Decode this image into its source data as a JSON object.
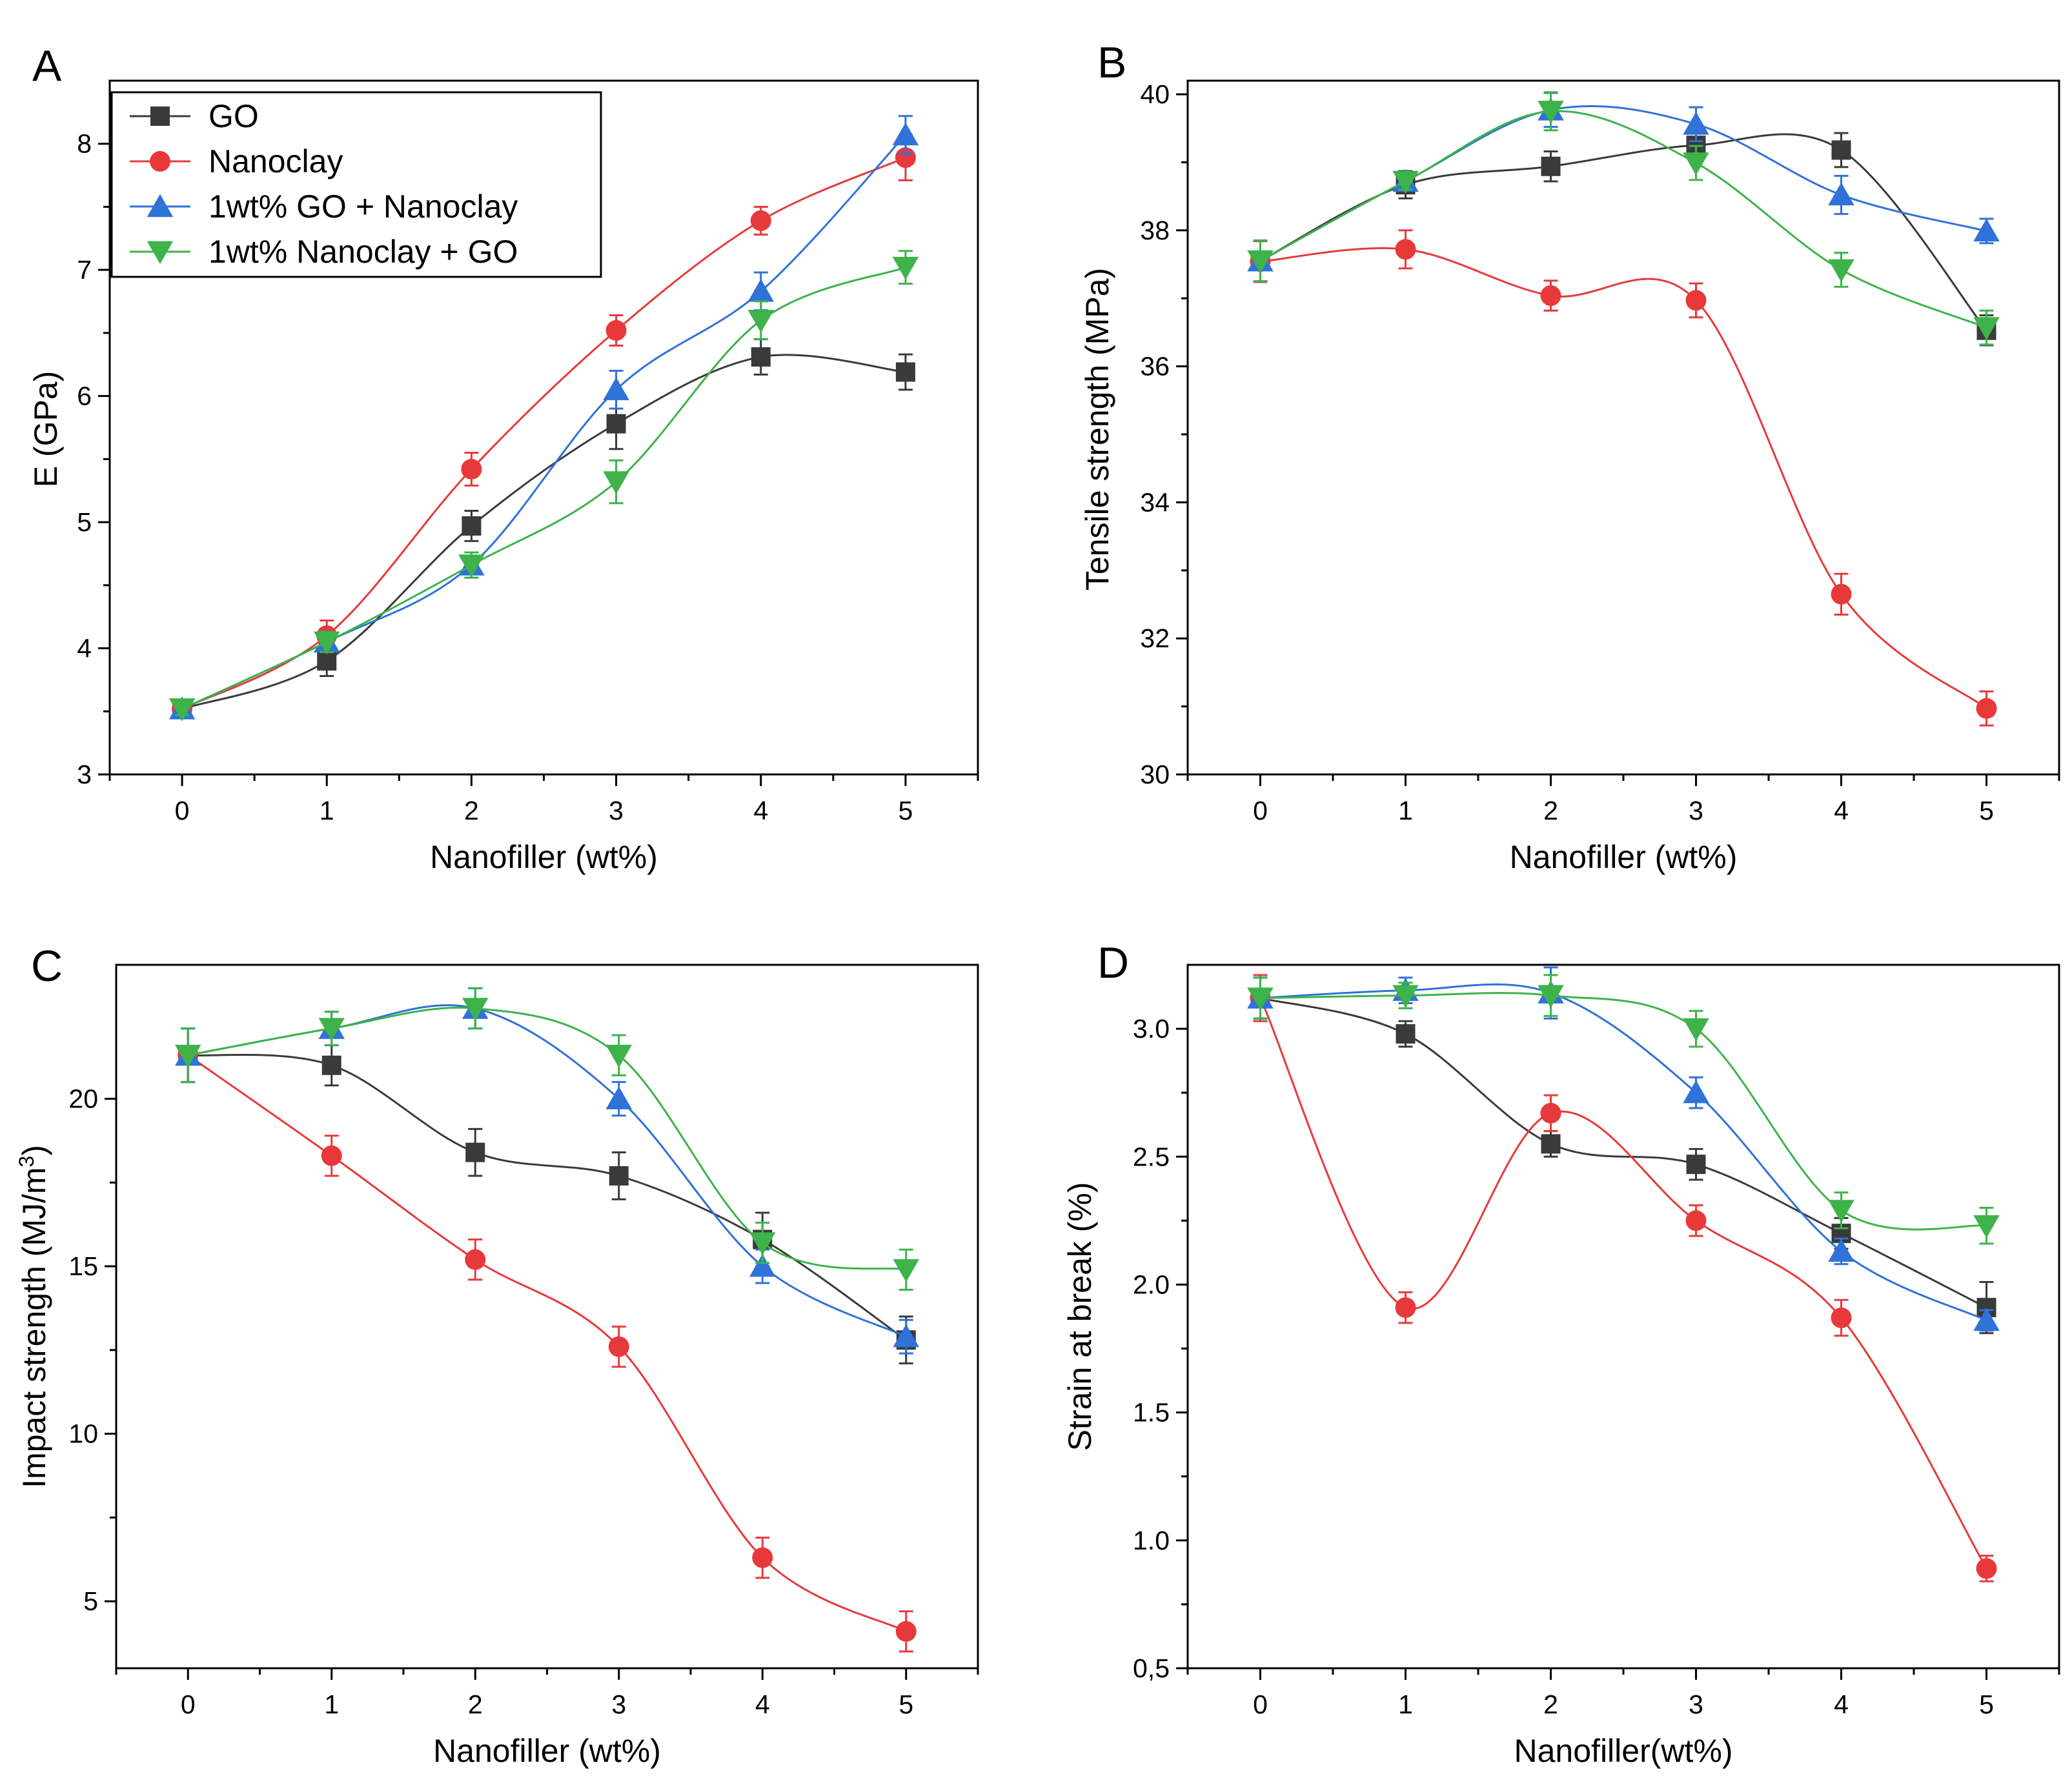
{
  "series_styles": [
    {
      "name": "GO",
      "color": "#3a3a3a",
      "marker": "square"
    },
    {
      "name": "Nanoclay",
      "color": "#e8393a",
      "marker": "circle"
    },
    {
      "name": "1wt% GO + Nanoclay",
      "color": "#2f72d8",
      "marker": "triangle-up"
    },
    {
      "name": "1wt% Nanoclay + GO",
      "color": "#3db34a",
      "marker": "triangle-down"
    }
  ],
  "chart_data": [
    {
      "panel": "A",
      "type": "line",
      "xlabel": "Nanofiller (wt%)",
      "ylabel": "E (GPa)",
      "x": [
        0,
        1,
        2,
        3,
        4,
        5
      ],
      "xlim": [
        -0.5,
        5.5
      ],
      "ylim": [
        3,
        8.5
      ],
      "yticks": [
        3,
        4,
        5,
        6,
        7,
        8
      ],
      "ytick_labels": [
        "3",
        "4",
        "5",
        "6",
        "7",
        "8"
      ],
      "legend": "top-left",
      "series": [
        {
          "name": "GO",
          "values": [
            3.52,
            3.9,
            4.97,
            5.78,
            6.31,
            6.19
          ],
          "errors": [
            0.05,
            0.12,
            0.12,
            0.2,
            0.14,
            0.14
          ]
        },
        {
          "name": "Nanoclay",
          "values": [
            3.52,
            4.1,
            5.42,
            6.52,
            7.39,
            7.89
          ],
          "errors": [
            0.05,
            0.12,
            0.13,
            0.12,
            0.11,
            0.18
          ]
        },
        {
          "name": "1wt% GO + Nanoclay",
          "values": [
            3.52,
            4.05,
            4.66,
            6.05,
            6.83,
            8.07
          ],
          "errors": [
            0.05,
            0.08,
            0.1,
            0.15,
            0.15,
            0.15
          ]
        },
        {
          "name": "1wt% Nanoclay + GO",
          "values": [
            3.52,
            4.05,
            4.66,
            5.32,
            6.6,
            7.02
          ],
          "errors": [
            0.05,
            0.08,
            0.1,
            0.17,
            0.15,
            0.13
          ]
        }
      ]
    },
    {
      "panel": "B",
      "type": "line",
      "xlabel": "Nanofiller (wt%)",
      "ylabel": "Tensile strength (MPa)",
      "x": [
        0,
        1,
        2,
        3,
        4,
        5
      ],
      "xlim": [
        -0.5,
        5.5
      ],
      "ylim": [
        30,
        40.2
      ],
      "yticks": [
        30,
        32,
        34,
        36,
        38,
        40
      ],
      "ytick_labels": [
        "30",
        "32",
        "34",
        "36",
        "38",
        "40"
      ],
      "series": [
        {
          "name": "GO",
          "values": [
            37.55,
            38.67,
            38.94,
            39.25,
            39.18,
            36.53
          ],
          "errors": [
            0.3,
            0.2,
            0.22,
            0.2,
            0.25,
            0.22
          ]
        },
        {
          "name": "Nanoclay",
          "values": [
            37.54,
            37.72,
            37.04,
            36.97,
            32.65,
            30.97
          ],
          "errors": [
            0.3,
            0.28,
            0.22,
            0.25,
            0.3,
            0.25
          ]
        },
        {
          "name": "1wt% GO + Nanoclay",
          "values": [
            37.55,
            38.72,
            39.77,
            39.56,
            38.52,
            37.99
          ],
          "errors": [
            0.3,
            0.12,
            0.25,
            0.25,
            0.28,
            0.18
          ]
        },
        {
          "name": "1wt% Nanoclay + GO",
          "values": [
            37.55,
            38.72,
            39.75,
            38.99,
            37.42,
            36.57
          ],
          "errors": [
            0.3,
            0.12,
            0.28,
            0.25,
            0.25,
            0.25
          ]
        }
      ]
    },
    {
      "panel": "C",
      "type": "line",
      "xlabel": "Nanofiller (wt%)",
      "ylabel": "Impact strength (MJ/m",
      "ylabel_sup": "3",
      "ylabel_end": ")",
      "x": [
        0,
        1,
        2,
        3,
        4,
        5
      ],
      "xlim": [
        -0.5,
        5.5
      ],
      "ylim": [
        3,
        24
      ],
      "yticks": [
        5,
        10,
        15,
        20
      ],
      "ytick_labels": [
        "5",
        "10",
        "15",
        "20"
      ],
      "series": [
        {
          "name": "GO",
          "values": [
            21.3,
            21.0,
            18.4,
            17.7,
            15.8,
            12.8
          ],
          "errors": [
            0.8,
            0.6,
            0.7,
            0.7,
            0.8,
            0.7
          ]
        },
        {
          "name": "Nanoclay",
          "values": [
            21.3,
            18.3,
            15.2,
            12.6,
            6.3,
            4.1
          ],
          "errors": [
            0.8,
            0.6,
            0.6,
            0.6,
            0.6,
            0.6
          ]
        },
        {
          "name": "1wt% GO + Nanoclay",
          "values": [
            21.3,
            22.1,
            22.7,
            20.0,
            15.0,
            12.9
          ],
          "errors": [
            0.8,
            0.5,
            0.6,
            0.5,
            0.5,
            0.5
          ]
        },
        {
          "name": "1wt% Nanoclay + GO",
          "values": [
            21.3,
            22.1,
            22.7,
            21.3,
            15.7,
            14.9
          ],
          "errors": [
            0.8,
            0.5,
            0.6,
            0.6,
            0.6,
            0.6
          ]
        }
      ]
    },
    {
      "panel": "D",
      "type": "line",
      "xlabel": "Nanofiller(wt%)",
      "ylabel": "Strain at break (%)",
      "x": [
        0,
        1,
        2,
        3,
        4,
        5
      ],
      "xlim": [
        -0.5,
        5.5
      ],
      "ylim": [
        0.5,
        3.25
      ],
      "yticks": [
        0.5,
        1.0,
        1.5,
        2.0,
        2.5,
        3.0
      ],
      "ytick_labels": [
        "0,5",
        "1.0",
        "1.5",
        "2.0",
        "2.5",
        "3.0"
      ],
      "series": [
        {
          "name": "GO",
          "values": [
            3.12,
            2.98,
            2.55,
            2.47,
            2.2,
            1.91
          ],
          "errors": [
            0.08,
            0.05,
            0.05,
            0.06,
            0.06,
            0.1
          ]
        },
        {
          "name": "Nanoclay",
          "values": [
            3.12,
            1.91,
            2.67,
            2.25,
            1.87,
            0.89
          ],
          "errors": [
            0.09,
            0.06,
            0.07,
            0.06,
            0.07,
            0.05
          ]
        },
        {
          "name": "1wt% GO + Nanoclay",
          "values": [
            3.12,
            3.15,
            3.14,
            2.75,
            2.13,
            1.86
          ],
          "errors": [
            0.08,
            0.05,
            0.1,
            0.06,
            0.05,
            0.04
          ]
        },
        {
          "name": "1wt% Nanoclay + GO",
          "values": [
            3.12,
            3.13,
            3.13,
            3.0,
            2.29,
            2.23
          ],
          "errors": [
            0.08,
            0.05,
            0.08,
            0.07,
            0.07,
            0.07
          ]
        }
      ]
    }
  ]
}
